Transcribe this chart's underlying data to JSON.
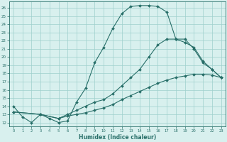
{
  "xlabel": "Humidex (Indice chaleur)",
  "xlim": [
    -0.5,
    23.5
  ],
  "ylim": [
    11.5,
    26.8
  ],
  "yticks": [
    12,
    13,
    14,
    15,
    16,
    17,
    18,
    19,
    20,
    21,
    22,
    23,
    24,
    25,
    26
  ],
  "xticks": [
    0,
    1,
    2,
    3,
    4,
    5,
    6,
    7,
    8,
    9,
    10,
    11,
    12,
    13,
    14,
    15,
    16,
    17,
    18,
    19,
    20,
    21,
    22,
    23
  ],
  "background_color": "#d8f0ee",
  "grid_color": "#9ecfcc",
  "line_color": "#276e68",
  "curve1_x": [
    0,
    1,
    2,
    3,
    4,
    5,
    6,
    7,
    8,
    9,
    10,
    11,
    12,
    13,
    14,
    15,
    16,
    17,
    18,
    19,
    20,
    21,
    22,
    23
  ],
  "curve1_y": [
    14.0,
    12.7,
    12.0,
    13.0,
    12.5,
    12.0,
    12.2,
    14.5,
    16.2,
    19.3,
    21.2,
    23.5,
    25.3,
    26.2,
    26.3,
    26.3,
    26.2,
    25.5,
    22.2,
    22.2,
    21.0,
    19.3,
    18.5,
    17.5
  ],
  "curve2_x": [
    0,
    3,
    5,
    6,
    7,
    8,
    9,
    10,
    11,
    12,
    13,
    14,
    15,
    16,
    17,
    18,
    19,
    20,
    21,
    22,
    23
  ],
  "curve2_y": [
    13.3,
    13.0,
    12.5,
    13.0,
    13.5,
    14.0,
    14.5,
    14.8,
    15.5,
    16.5,
    17.5,
    18.5,
    20.0,
    21.5,
    22.2,
    22.2,
    21.8,
    21.2,
    19.5,
    18.5,
    17.5
  ],
  "curve3_x": [
    0,
    3,
    5,
    6,
    7,
    8,
    9,
    10,
    11,
    12,
    13,
    14,
    15,
    16,
    17,
    18,
    19,
    20,
    21,
    22,
    23
  ],
  "curve3_y": [
    13.3,
    13.0,
    12.5,
    12.8,
    13.0,
    13.2,
    13.5,
    13.8,
    14.2,
    14.8,
    15.3,
    15.8,
    16.3,
    16.8,
    17.2,
    17.5,
    17.7,
    17.9,
    17.9,
    17.8,
    17.5
  ]
}
